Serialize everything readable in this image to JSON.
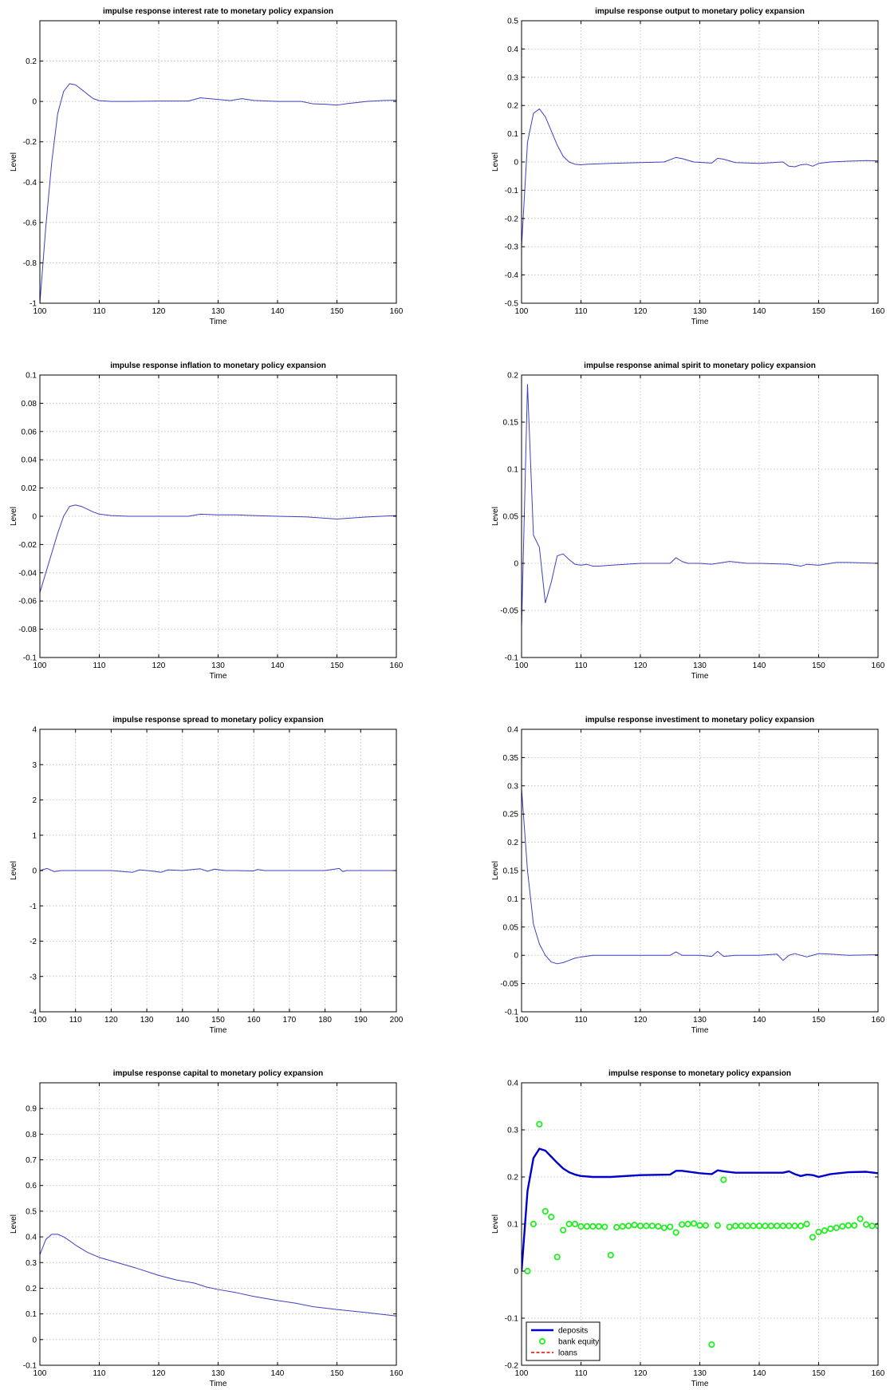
{
  "chart_data": [
    {
      "type": "line",
      "title": "impulse response interest rate to monetary policy expansion",
      "xlabel": "Time",
      "ylabel": "Level",
      "xlim": [
        100,
        160
      ],
      "ylim": [
        -1,
        0.4
      ],
      "xticks": [
        100,
        110,
        120,
        130,
        140,
        150,
        160
      ],
      "yticks": [
        -1,
        -0.8,
        -0.6,
        -0.4,
        -0.2,
        0,
        0.2
      ],
      "grid": true,
      "series": [
        {
          "color": "#3f3fbf",
          "x": [
            100,
            101,
            102,
            103,
            104,
            105,
            106,
            107,
            108,
            109,
            110,
            112,
            115,
            120,
            125,
            127,
            130,
            132,
            134,
            136,
            140,
            144,
            146,
            148,
            150,
            152,
            155,
            158,
            160
          ],
          "y": [
            -1.0,
            -0.62,
            -0.3,
            -0.06,
            0.05,
            0.088,
            0.082,
            0.06,
            0.036,
            0.014,
            0.004,
            0.0,
            0.0,
            0.002,
            0.002,
            0.018,
            0.01,
            0.004,
            0.014,
            0.005,
            0.0,
            0.0,
            -0.012,
            -0.014,
            -0.018,
            -0.01,
            0.0,
            0.005,
            0.006
          ]
        }
      ]
    },
    {
      "type": "line",
      "title": "impulse response output to monetary policy expansion",
      "xlabel": "Time",
      "ylabel": "Level",
      "xlim": [
        100,
        160
      ],
      "ylim": [
        -0.5,
        0.5
      ],
      "xticks": [
        100,
        110,
        120,
        130,
        140,
        150,
        160
      ],
      "yticks": [
        -0.5,
        -0.4,
        -0.3,
        -0.2,
        -0.1,
        0,
        0.1,
        0.2,
        0.3,
        0.4,
        0.5
      ],
      "grid": true,
      "series": [
        {
          "color": "#3f3fbf",
          "x": [
            100,
            101,
            102,
            103,
            104,
            105,
            106,
            107,
            108,
            109,
            110,
            111,
            115,
            120,
            124,
            126,
            127,
            129,
            132,
            133,
            134,
            136,
            140,
            144,
            145,
            146,
            147,
            148,
            149,
            150,
            152,
            155,
            158,
            160
          ],
          "y": [
            -0.3,
            0.07,
            0.172,
            0.188,
            0.16,
            0.11,
            0.06,
            0.02,
            0.0,
            -0.008,
            -0.01,
            -0.008,
            -0.005,
            -0.002,
            0.0,
            0.016,
            0.012,
            0.0,
            -0.004,
            0.013,
            0.01,
            -0.002,
            -0.005,
            0.0,
            -0.015,
            -0.017,
            -0.01,
            -0.008,
            -0.015,
            -0.005,
            0.0,
            0.003,
            0.005,
            0.004
          ]
        }
      ]
    },
    {
      "type": "line",
      "title": "impulse response inflation to monetary policy expansion",
      "xlabel": "Time",
      "ylabel": "Level",
      "xlim": [
        100,
        160
      ],
      "ylim": [
        -0.1,
        0.1
      ],
      "xticks": [
        100,
        110,
        120,
        130,
        140,
        150,
        160
      ],
      "yticks": [
        -0.1,
        -0.08,
        -0.06,
        -0.04,
        -0.02,
        0,
        0.02,
        0.04,
        0.06,
        0.08,
        0.1
      ],
      "grid": true,
      "series": [
        {
          "color": "#3f3fbf",
          "x": [
            100,
            101,
            102,
            103,
            104,
            105,
            106,
            107,
            108,
            109,
            110,
            112,
            115,
            120,
            125,
            127,
            130,
            133,
            136,
            140,
            145,
            150,
            155,
            160
          ],
          "y": [
            -0.054,
            -0.04,
            -0.026,
            -0.012,
            0.0,
            0.007,
            0.008,
            0.007,
            0.005,
            0.003,
            0.0015,
            0.0005,
            0.0,
            0.0,
            0.0,
            0.0015,
            0.001,
            0.001,
            0.0005,
            0.0,
            -0.0005,
            -0.002,
            -0.0005,
            0.0005
          ]
        }
      ]
    },
    {
      "type": "line",
      "title": "impulse response animal spirit to monetary policy expansion",
      "xlabel": "Time",
      "ylabel": "Level",
      "xlim": [
        100,
        160
      ],
      "ylim": [
        -0.1,
        0.2
      ],
      "xticks": [
        100,
        110,
        120,
        130,
        140,
        150,
        160
      ],
      "yticks": [
        -0.1,
        -0.05,
        0,
        0.05,
        0.1,
        0.15,
        0.2
      ],
      "grid": true,
      "series": [
        {
          "color": "#3f3fbf",
          "x": [
            100,
            101,
            102,
            103,
            104,
            105,
            106,
            107,
            108,
            109,
            110,
            111,
            112,
            113,
            115,
            120,
            125,
            126,
            127,
            128,
            130,
            132,
            135,
            138,
            140,
            145,
            147,
            148,
            150,
            153,
            155,
            160
          ],
          "y": [
            -0.068,
            0.19,
            0.03,
            0.017,
            -0.042,
            -0.02,
            0.008,
            0.01,
            0.004,
            -0.001,
            -0.002,
            -0.001,
            -0.003,
            -0.003,
            -0.002,
            0.0,
            0.0,
            0.006,
            0.002,
            0.0,
            0.0,
            -0.001,
            0.002,
            0.0,
            0.0,
            -0.001,
            -0.003,
            -0.001,
            -0.002,
            0.001,
            0.001,
            0.0
          ]
        }
      ]
    },
    {
      "type": "line",
      "title": "impulse response spread to monetary policy expansion",
      "xlabel": "Time",
      "ylabel": "Level",
      "xlim": [
        100,
        200
      ],
      "ylim": [
        -4,
        4
      ],
      "xticks": [
        100,
        110,
        120,
        130,
        140,
        150,
        160,
        170,
        180,
        190,
        200
      ],
      "yticks": [
        -4,
        -3,
        -2,
        -1,
        0,
        1,
        2,
        3,
        4
      ],
      "grid": true,
      "series": [
        {
          "color": "#3f3fbf",
          "x": [
            100,
            102,
            104,
            106,
            110,
            120,
            126,
            128,
            132,
            134,
            136,
            140,
            145,
            147,
            149,
            152,
            155,
            160,
            161,
            163,
            170,
            180,
            184,
            185,
            186,
            190,
            200
          ],
          "y": [
            0.0,
            0.06,
            -0.03,
            0.0,
            0.0,
            0.0,
            -0.05,
            0.02,
            -0.02,
            -0.05,
            0.02,
            0.0,
            0.05,
            -0.02,
            0.04,
            0.0,
            0.0,
            -0.01,
            0.03,
            0.0,
            0.0,
            0.0,
            0.06,
            -0.03,
            0.0,
            0.0,
            0.0
          ]
        }
      ]
    },
    {
      "type": "line",
      "title": "impulse response investiment to monetary policy expansion",
      "xlabel": "Time",
      "ylabel": "Level",
      "xlim": [
        100,
        160
      ],
      "ylim": [
        -0.1,
        0.4
      ],
      "xticks": [
        100,
        110,
        120,
        130,
        140,
        150,
        160
      ],
      "yticks": [
        -0.1,
        -0.05,
        0,
        0.05,
        0.1,
        0.15,
        0.2,
        0.25,
        0.3,
        0.35,
        0.4
      ],
      "grid": true,
      "series": [
        {
          "color": "#3f3fbf",
          "x": [
            100,
            101,
            102,
            103,
            104,
            105,
            106,
            107,
            108,
            109,
            110,
            112,
            115,
            120,
            125,
            126,
            127,
            130,
            132,
            133,
            134,
            136,
            140,
            143,
            144,
            145,
            146,
            148,
            150,
            152,
            155,
            160
          ],
          "y": [
            0.295,
            0.15,
            0.055,
            0.02,
            0.0,
            -0.012,
            -0.015,
            -0.013,
            -0.009,
            -0.005,
            -0.003,
            0.0,
            0.0,
            0.0,
            0.0,
            0.006,
            0.0,
            0.0,
            -0.002,
            0.007,
            -0.002,
            0.0,
            0.0,
            0.002,
            -0.009,
            0.0,
            0.003,
            -0.003,
            0.003,
            0.002,
            0.0,
            0.001
          ]
        }
      ]
    },
    {
      "type": "line",
      "title": "impulse response capital to monetary policy expansion",
      "xlabel": "Time",
      "ylabel": "Level",
      "xlim": [
        100,
        160
      ],
      "ylim": [
        -0.1,
        1.0
      ],
      "xticks": [
        100,
        110,
        120,
        130,
        140,
        150,
        160
      ],
      "yticks": [
        -0.1,
        0,
        0.1,
        0.2,
        0.3,
        0.4,
        0.5,
        0.6,
        0.7,
        0.8,
        0.9
      ],
      "grid": true,
      "series": [
        {
          "color": "#3f3fbf",
          "x": [
            100,
            101,
            102,
            103,
            104,
            105,
            106,
            108,
            110,
            113,
            116,
            120,
            123,
            126,
            128,
            130,
            133,
            136,
            140,
            143,
            146,
            150,
            155,
            160
          ],
          "y": [
            0.33,
            0.39,
            0.41,
            0.41,
            0.4,
            0.385,
            0.368,
            0.34,
            0.32,
            0.3,
            0.28,
            0.25,
            0.232,
            0.22,
            0.205,
            0.195,
            0.183,
            0.168,
            0.152,
            0.142,
            0.128,
            0.117,
            0.105,
            0.092
          ]
        }
      ]
    },
    {
      "type": "line",
      "title": "impulse response to monetary policy expansion",
      "xlabel": "Time",
      "ylabel": "Level",
      "xlim": [
        100,
        160
      ],
      "ylim": [
        -0.2,
        0.4
      ],
      "xticks": [
        100,
        110,
        120,
        130,
        140,
        150,
        160
      ],
      "yticks": [
        -0.2,
        -0.1,
        0,
        0.1,
        0.2,
        0.3,
        0.4
      ],
      "grid": true,
      "legend": {
        "position": "bottom-left",
        "entries": [
          "deposits",
          "bank equity",
          "loans"
        ]
      },
      "series": [
        {
          "name": "deposits",
          "style": "line",
          "color": "#0000cc",
          "x": [
            100,
            101,
            102,
            103,
            104,
            105,
            106,
            107,
            108,
            109,
            110,
            112,
            115,
            120,
            125,
            126,
            127,
            130,
            132,
            133,
            134,
            136,
            140,
            144,
            145,
            146,
            147,
            148,
            149,
            150,
            152,
            155,
            158,
            160
          ],
          "y": [
            0.0,
            0.17,
            0.24,
            0.26,
            0.256,
            0.243,
            0.23,
            0.218,
            0.21,
            0.205,
            0.202,
            0.2,
            0.2,
            0.204,
            0.205,
            0.213,
            0.213,
            0.208,
            0.206,
            0.214,
            0.212,
            0.209,
            0.209,
            0.209,
            0.212,
            0.206,
            0.202,
            0.205,
            0.204,
            0.2,
            0.206,
            0.21,
            0.211,
            0.208
          ]
        },
        {
          "name": "bank equity",
          "style": "markers",
          "color": "#22ee22",
          "x": [
            101,
            102,
            103,
            104,
            105,
            106,
            107,
            108,
            109,
            110,
            111,
            112,
            113,
            114,
            115,
            116,
            117,
            118,
            119,
            120,
            121,
            122,
            123,
            124,
            125,
            126,
            127,
            128,
            129,
            130,
            131,
            132,
            133,
            134,
            135,
            136,
            137,
            138,
            139,
            140,
            141,
            142,
            143,
            144,
            145,
            146,
            147,
            148,
            149,
            150,
            151,
            152,
            153,
            154,
            155,
            156,
            157,
            158,
            159,
            160
          ],
          "y": [
            0.0,
            0.1,
            0.312,
            0.127,
            0.115,
            0.03,
            0.087,
            0.1,
            0.1,
            0.095,
            0.095,
            0.095,
            0.095,
            0.094,
            0.034,
            0.093,
            0.095,
            0.096,
            0.098,
            0.096,
            0.096,
            0.096,
            0.095,
            0.092,
            0.094,
            0.082,
            0.099,
            0.1,
            0.101,
            0.097,
            0.097,
            -0.156,
            0.097,
            0.194,
            0.094,
            0.096,
            0.096,
            0.096,
            0.096,
            0.096,
            0.096,
            0.096,
            0.096,
            0.096,
            0.096,
            0.096,
            0.096,
            0.1,
            0.072,
            0.083,
            0.086,
            0.09,
            0.092,
            0.095,
            0.097,
            0.097,
            0.111,
            0.099,
            0.096,
            0.096
          ]
        },
        {
          "name": "loans",
          "style": "dashed",
          "color": "#ee0000",
          "x": [],
          "y": []
        }
      ]
    }
  ]
}
